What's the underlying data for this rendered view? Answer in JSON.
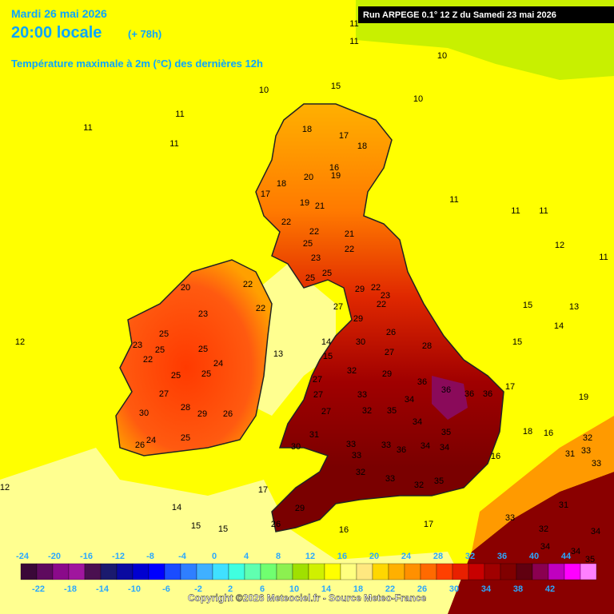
{
  "header": {
    "date": "Mardi 26 mai 2026",
    "time": "20:00 locale",
    "lead": "(+ 78h)",
    "title": "Température maximale à 2m (°C) des dernières 12h",
    "run": "Run ARPEGE 0.1° 12 Z du Samedi 23 mai 2026"
  },
  "labels": [
    11,
    11,
    10,
    10,
    10,
    11,
    11,
    11,
    15,
    11,
    11,
    11,
    12,
    11,
    12,
    15,
    13,
    14,
    15,
    16,
    18,
    17,
    18,
    19,
    20,
    18,
    19,
    21,
    17,
    22,
    22,
    21,
    25,
    22,
    23,
    25,
    25,
    20,
    22,
    22,
    23,
    25,
    23,
    25,
    25,
    24,
    22,
    25,
    25,
    27,
    28,
    29,
    30,
    26,
    26,
    24,
    25,
    29,
    22,
    23,
    22,
    27,
    29,
    26,
    30,
    27,
    28,
    32,
    29,
    36,
    36,
    36,
    36,
    33,
    34,
    35,
    34,
    32,
    27,
    27,
    27,
    31,
    30,
    33,
    33,
    36,
    34,
    35,
    34,
    33,
    32,
    33,
    32,
    35,
    29,
    26,
    17,
    14,
    15,
    15,
    16,
    17,
    16,
    18,
    16,
    17,
    19,
    32,
    33,
    31,
    33,
    31,
    33,
    32,
    34,
    34,
    35,
    34,
    12,
    13,
    14,
    15
  ],
  "scale": {
    "ticks_top": [
      -24,
      -20,
      -16,
      -12,
      -8,
      -4,
      0,
      4,
      8,
      12,
      16,
      20,
      24,
      28,
      32,
      36,
      40,
      44
    ],
    "ticks_bottom": [
      -22,
      -18,
      -14,
      -10,
      -6,
      -2,
      2,
      6,
      10,
      14,
      18,
      22,
      26,
      30,
      34,
      38,
      42
    ],
    "colors": [
      "#3a0838",
      "#5e0a5e",
      "#8a0a8a",
      "#a0169e",
      "#4a1050",
      "#1a1a6e",
      "#0a0aa0",
      "#0000d0",
      "#0000ff",
      "#1a4cff",
      "#2f7fff",
      "#40b0ff",
      "#40e0ff",
      "#40ffe0",
      "#60ffb0",
      "#70ff70",
      "#8cf050",
      "#a0e000",
      "#d0f000",
      "#ffff00",
      "#ffff80",
      "#ffe880",
      "#ffd700",
      "#ffb000",
      "#ff9000",
      "#ff6a00",
      "#ff4000",
      "#e82000",
      "#c80000",
      "#a00000",
      "#800000",
      "#600010",
      "#8a0050",
      "#c000c0",
      "#ff00ff",
      "#ff80ff"
    ]
  },
  "footer": "Copyright ©2026 Meteociel.fr - Source Meteo-France"
}
